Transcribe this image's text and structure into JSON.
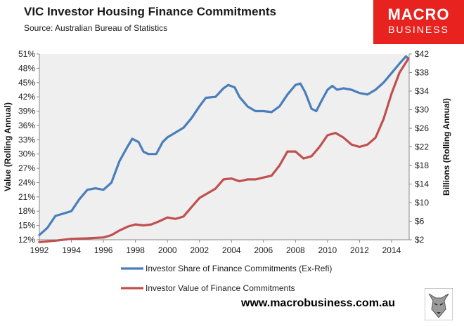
{
  "header": {
    "title": "VIC Investor Housing Finance Commitments",
    "subtitle": "Source: Australian Bureau of Statistics"
  },
  "logo": {
    "line1": "MACRO",
    "line2": "BUSINESS",
    "icon": "wolf-icon"
  },
  "footer": {
    "url": "www.macrobusiness.com.au"
  },
  "colors": {
    "share": "#4a7ebb",
    "value": "#c0504d",
    "plot_bg": "#efefef",
    "logo_bg": "#e8221f"
  },
  "chart_data": {
    "type": "line",
    "title": "VIC Investor Housing Finance Commitments",
    "subtitle": "Source: Australian Bureau of Statistics",
    "xlabel": "",
    "ylabel": "Value (Rolling Annual)",
    "y2label": "Billions (Rolling Annual)",
    "xlim": [
      1992,
      2015.1
    ],
    "ylim": [
      12,
      51
    ],
    "y2lim": [
      2,
      42
    ],
    "x_ticks": [
      1992,
      1994,
      1996,
      1998,
      2000,
      2002,
      2004,
      2006,
      2008,
      2010,
      2012,
      2014
    ],
    "y_ticks": [
      "12%",
      "15%",
      "18%",
      "21%",
      "24%",
      "27%",
      "30%",
      "33%",
      "36%",
      "39%",
      "42%",
      "45%",
      "48%",
      "51%"
    ],
    "y_tick_values": [
      12,
      15,
      18,
      21,
      24,
      27,
      30,
      33,
      36,
      39,
      42,
      45,
      48,
      51
    ],
    "y2_ticks": [
      "$2",
      "$6",
      "$10",
      "$14",
      "$18",
      "$22",
      "$26",
      "$30",
      "$34",
      "$38",
      "$42"
    ],
    "y2_tick_values": [
      2,
      6,
      10,
      14,
      18,
      22,
      26,
      30,
      34,
      38,
      42
    ],
    "grid": false,
    "legend_position": "bottom",
    "series": [
      {
        "name": "Investor Share of Finance Commitments (Ex-Refi)",
        "axis": "left",
        "x": [
          1992,
          1992.5,
          1993,
          1993.5,
          1994,
          1994.5,
          1995,
          1995.5,
          1996,
          1996.5,
          1997,
          1997.5,
          1997.8,
          1998.2,
          1998.5,
          1998.8,
          1999.3,
          1999.7,
          2000,
          2000.5,
          2001,
          2001.5,
          2002,
          2002.4,
          2003,
          2003.5,
          2003.8,
          2004.2,
          2004.5,
          2005,
          2005.5,
          2006,
          2006.5,
          2007,
          2007.5,
          2008,
          2008.3,
          2008.6,
          2009,
          2009.3,
          2009.6,
          2010,
          2010.3,
          2010.6,
          2011,
          2011.5,
          2012,
          2012.5,
          2013,
          2013.5,
          2014,
          2014.5,
          2014.9,
          2015.05
        ],
        "values": [
          13.0,
          14.5,
          17.0,
          17.5,
          18.0,
          20.5,
          22.5,
          22.8,
          22.5,
          24.0,
          28.5,
          31.5,
          33.2,
          32.5,
          30.5,
          30.0,
          30.0,
          32.5,
          33.5,
          34.5,
          35.5,
          37.5,
          40.0,
          41.8,
          42.0,
          43.8,
          44.5,
          44.0,
          42.0,
          40.0,
          39.0,
          39.0,
          38.8,
          40.0,
          42.5,
          44.5,
          44.8,
          43.0,
          39.5,
          39.0,
          41.0,
          43.5,
          44.3,
          43.5,
          43.8,
          43.5,
          42.8,
          42.5,
          43.5,
          45.0,
          47.0,
          49.0,
          50.5,
          50.0
        ]
      },
      {
        "name": "Investor Value of Finance Commitments",
        "axis": "right",
        "x": [
          1992,
          1993,
          1994,
          1995,
          1996,
          1996.5,
          1997,
          1997.5,
          1998,
          1998.5,
          1999,
          1999.5,
          2000,
          2000.5,
          2001,
          2001.5,
          2002,
          2002.5,
          2003,
          2003.5,
          2004,
          2004.5,
          2005,
          2005.5,
          2006,
          2006.5,
          2007,
          2007.5,
          2008,
          2008.5,
          2009,
          2009.5,
          2010,
          2010.5,
          2011,
          2011.5,
          2012,
          2012.5,
          2013,
          2013.5,
          2014,
          2014.5,
          2015.05
        ],
        "values": [
          1.5,
          1.8,
          2.2,
          2.3,
          2.5,
          3.0,
          4.0,
          4.8,
          5.3,
          5.1,
          5.3,
          6.0,
          6.8,
          6.5,
          7.0,
          9.0,
          11.0,
          12.0,
          13.0,
          15.0,
          15.2,
          14.6,
          15.0,
          15.0,
          15.4,
          15.8,
          18.0,
          21.0,
          21.0,
          19.5,
          20.0,
          22.0,
          24.5,
          25.0,
          24.0,
          22.5,
          22.0,
          22.5,
          24.0,
          28.0,
          33.5,
          38.0,
          41.0
        ]
      }
    ]
  }
}
